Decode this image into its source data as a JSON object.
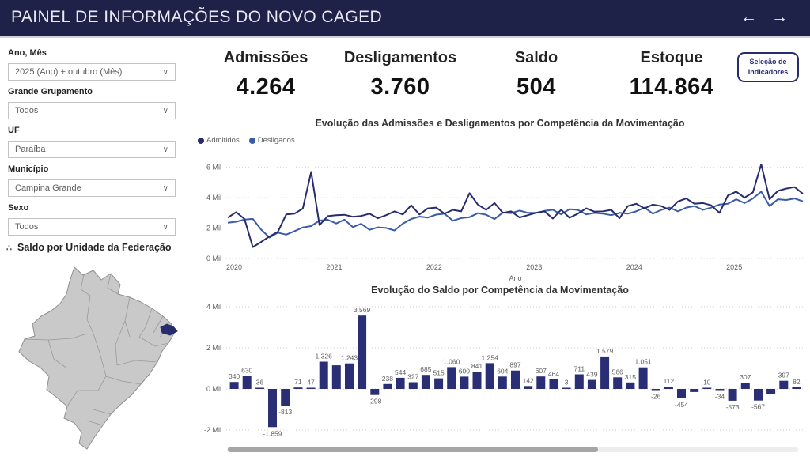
{
  "header": {
    "title": "PAINEL DE INFORMAÇÕES DO NOVO CAGED",
    "nav_prev": "←",
    "nav_next": "→"
  },
  "filters": [
    {
      "label": "Ano, Mês",
      "value": "2025 (Ano) + outubro (Mês)"
    },
    {
      "label": "Grande Grupamento",
      "value": "Todos"
    },
    {
      "label": "UF",
      "value": "Paraíba"
    },
    {
      "label": "Município",
      "value": "Campina Grande"
    },
    {
      "label": "Sexo",
      "value": "Todos"
    }
  ],
  "map": {
    "title": "Saldo por Unidade da Federação",
    "icon": "∴",
    "highlight_state": "Paraíba",
    "highlight_color": "#272C6E",
    "state_fill": "#C9C9C9",
    "state_stroke": "#8F8F8F"
  },
  "kpis": [
    {
      "label": "Admissões",
      "value": "4.264"
    },
    {
      "label": "Desligamentos",
      "value": "3.760"
    },
    {
      "label": "Saldo",
      "value": "504"
    },
    {
      "label": "Estoque",
      "value": "114.864"
    }
  ],
  "selection_button": {
    "line1": "Seleção de",
    "line2": "Indicadores"
  },
  "colors": {
    "header_bg": "#1F2248",
    "accent": "#272C6E",
    "grid": "#CCCCCC",
    "axis_text": "#605E5C"
  },
  "chart_data": [
    {
      "type": "line",
      "title": "Evolução das Admissões e Desligamentos por Competência da Movimentação",
      "xlabel": "Ano",
      "x_ticks": [
        {
          "i": 0,
          "label": "2020"
        },
        {
          "i": 12,
          "label": "2021"
        },
        {
          "i": 24,
          "label": "2022"
        },
        {
          "i": 36,
          "label": "2023"
        },
        {
          "i": 48,
          "label": "2024"
        },
        {
          "i": 60,
          "label": "2025"
        }
      ],
      "y_ticks": [
        {
          "v": 6000,
          "label": "6 Mil"
        },
        {
          "v": 4000,
          "label": "4 Mil"
        },
        {
          "v": 2000,
          "label": "2 Mil"
        },
        {
          "v": 0,
          "label": "0 Mil"
        }
      ],
      "ylim": [
        0,
        6500
      ],
      "series": [
        {
          "name": "Admitidos",
          "color": "#272C6E",
          "values": [
            2690,
            3050,
            2600,
            750,
            1090,
            1450,
            1750,
            2900,
            2950,
            3290,
            5700,
            2200,
            2790,
            2850,
            2880,
            2750,
            2800,
            2950,
            2650,
            2850,
            3100,
            2900,
            3500,
            2900,
            3300,
            3350,
            2950,
            3200,
            3100,
            4300,
            3550,
            3200,
            3650,
            3000,
            3100,
            2700,
            2850,
            3010,
            3100,
            2630,
            3210,
            2680,
            2950,
            3300,
            3080,
            3100,
            3200,
            2650,
            3450,
            3600,
            3300,
            3550,
            3450,
            3200,
            3750,
            3950,
            3600,
            3650,
            3500,
            3000,
            4150,
            4400,
            4000,
            4350,
            6200,
            3900,
            4450,
            4600,
            4700,
            4264
          ]
        },
        {
          "name": "Desligados",
          "color": "#3A5CA8",
          "values": [
            2350,
            2420,
            2564,
            2609,
            1903,
            1379,
            1703,
            1574,
            1800,
            2047,
            2131,
            2498,
            2552,
            2306,
            2553,
            2065,
            2285,
            1890,
            2050,
            2009,
            1846,
            2296,
            2603,
            2758,
            2693,
            2886,
            2947,
            2489,
            2661,
            2721,
            2984,
            2885,
            2599,
            3026,
            2988,
            3154,
            3000,
            3000,
            3134,
            3203,
            2903,
            3247,
            3200,
            2903,
            2998,
            2950,
            2850,
            3000,
            2950,
            3100,
            3350,
            2950,
            3200,
            3350,
            3100,
            3350,
            3450,
            3200,
            3350,
            3550,
            3600,
            3900,
            3650,
            3950,
            4400,
            3450,
            3900,
            3850,
            3950,
            3760
          ]
        }
      ]
    },
    {
      "type": "bar",
      "title": "Evolução do Saldo por Competência da Movimentação",
      "color": "#2A2E75",
      "y_ticks": [
        {
          "v": 4000,
          "label": "4 Mil"
        },
        {
          "v": 2000,
          "label": "2 Mil"
        },
        {
          "v": 0,
          "label": "0 Mil"
        },
        {
          "v": -2000,
          "label": "-2 Mil"
        }
      ],
      "ylim": [
        -2200,
        4200
      ],
      "values": [
        340,
        630,
        36,
        -1859,
        -813,
        71,
        47,
        1326,
        1150,
        1243,
        3569,
        -298,
        238,
        544,
        327,
        685,
        515,
        1060,
        600,
        841,
        1254,
        604,
        897,
        142,
        607,
        464,
        3,
        711,
        439,
        1579,
        566,
        315,
        1051,
        -26,
        112,
        -454,
        -150,
        10,
        -34,
        -573,
        307,
        -567,
        -250,
        397,
        82
      ],
      "labels": [
        "340",
        "630",
        "36",
        "-1.859",
        "-813",
        "71",
        "47",
        "1.326",
        "",
        "1.243",
        "3.569",
        "-298",
        "238",
        "544",
        "327",
        "685",
        "515",
        "1.060",
        "600",
        "841",
        "1.254",
        "604",
        "897",
        "142",
        "607",
        "464",
        "3",
        "711",
        "439",
        "1.579",
        "566",
        "315",
        "1.051",
        "-26",
        "112",
        "-454",
        "",
        "10",
        "-34",
        "-573",
        "307",
        "-567",
        "",
        "397",
        "82"
      ]
    }
  ]
}
